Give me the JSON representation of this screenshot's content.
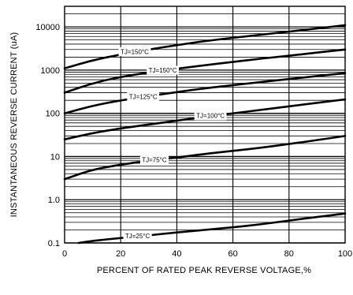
{
  "chart_data": {
    "type": "line",
    "xlabel": "PERCENT OF RATED PEAK REVERSE VOLTAGE,%",
    "ylabel": "INSTANTANEOUS REVERSE CURRENT (uA)",
    "xlim": [
      0,
      100
    ],
    "ylim": [
      0.1,
      30000
    ],
    "yscale": "log",
    "grid": true,
    "x_ticks": [
      "0",
      "20",
      "40",
      "60",
      "80",
      "100"
    ],
    "y_ticks": [
      "0.1",
      "1.0",
      "10",
      "100",
      "1000",
      "10000"
    ],
    "series": [
      {
        "name": "TJ=150°C",
        "x": [
          0,
          10,
          20,
          30,
          40,
          50,
          60,
          70,
          80,
          90,
          100
        ],
        "y": [
          1100,
          1700,
          2300,
          3000,
          3800,
          4700,
          5600,
          6600,
          7800,
          9200,
          11000
        ]
      },
      {
        "name": "TJ=150°C",
        "x": [
          0,
          10,
          20,
          30,
          40,
          50,
          60,
          70,
          80,
          90,
          100
        ],
        "y": [
          300,
          500,
          700,
          880,
          1080,
          1300,
          1550,
          1850,
          2150,
          2550,
          3000
        ]
      },
      {
        "name": "TJ=125°C",
        "x": [
          0,
          10,
          20,
          30,
          40,
          50,
          60,
          70,
          80,
          90,
          100
        ],
        "y": [
          100,
          150,
          200,
          250,
          310,
          380,
          450,
          530,
          620,
          730,
          850
        ]
      },
      {
        "name": "TJ=100°C",
        "x": [
          0,
          10,
          20,
          30,
          40,
          50,
          60,
          70,
          80,
          90,
          100
        ],
        "y": [
          25,
          35,
          45,
          55,
          68,
          83,
          100,
          120,
          145,
          175,
          210
        ]
      },
      {
        "name": "TJ=75°C",
        "x": [
          0,
          10,
          20,
          30,
          40,
          50,
          60,
          70,
          80,
          90,
          100
        ],
        "y": [
          3,
          5,
          6.5,
          8,
          9.5,
          11.5,
          13.5,
          16,
          19.5,
          24,
          30
        ]
      },
      {
        "name": "TJ=25°C",
        "x": [
          5,
          10,
          20,
          30,
          40,
          50,
          60,
          70,
          80,
          90,
          100
        ],
        "y": [
          0.1,
          0.112,
          0.13,
          0.15,
          0.175,
          0.2,
          0.23,
          0.27,
          0.33,
          0.4,
          0.48
        ]
      }
    ]
  }
}
